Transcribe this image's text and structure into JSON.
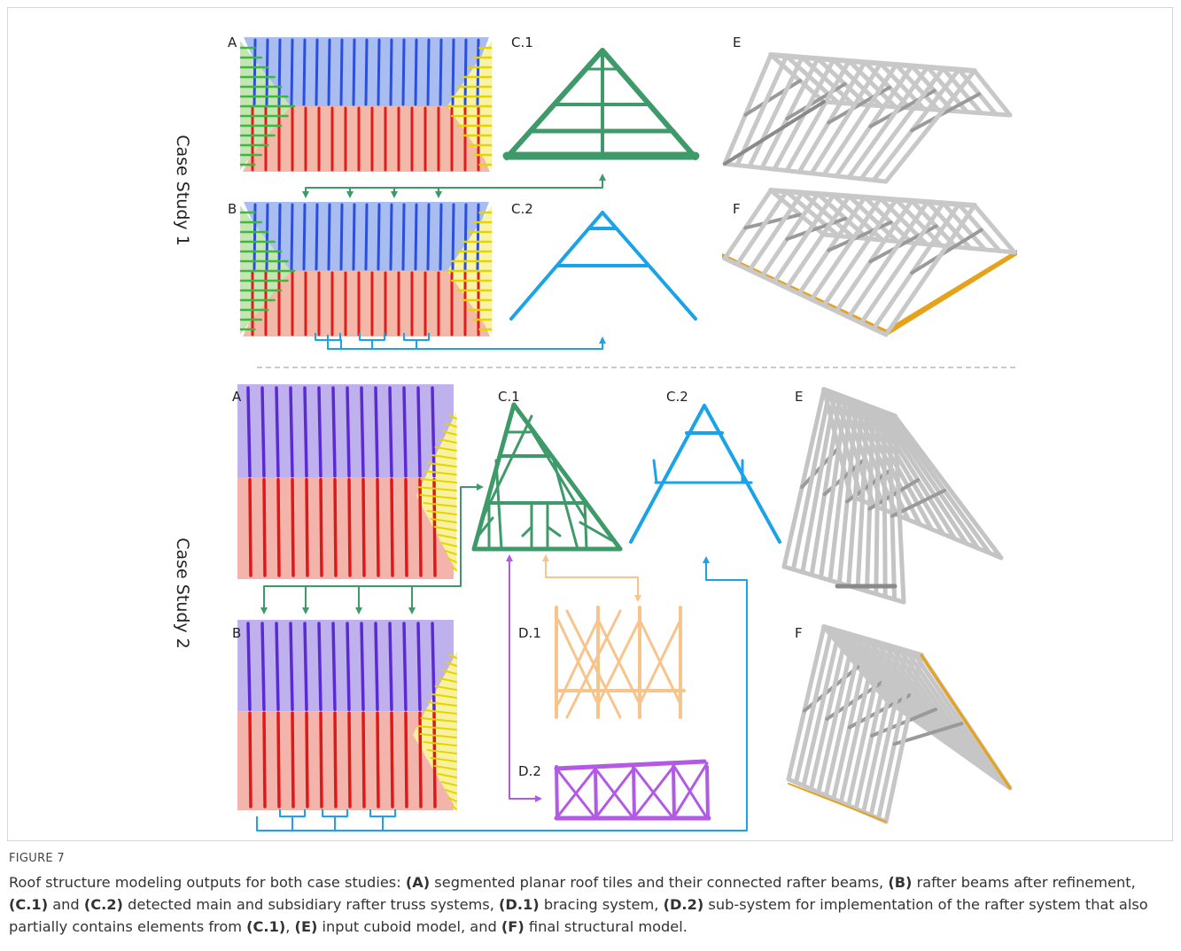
{
  "figure": {
    "case_studies": [
      {
        "title": "Case Study 1",
        "panels": [
          "A",
          "C.1",
          "E",
          "B",
          "C.2",
          "F"
        ]
      },
      {
        "title": "Case Study 2",
        "panels": [
          "A",
          "C.1",
          "C.2",
          "E",
          "B",
          "D.1",
          "D.2",
          "F"
        ]
      }
    ]
  },
  "caption": {
    "label": "FIGURE 7",
    "runs": [
      {
        "text": "Roof structure modeling outputs for both case studies: ",
        "bold": false
      },
      {
        "text": "(A)",
        "bold": true
      },
      {
        "text": " segmented planar roof tiles and their connected rafter beams, ",
        "bold": false
      },
      {
        "text": "(B)",
        "bold": true
      },
      {
        "text": " rafter beams after refinement, ",
        "bold": false
      },
      {
        "text": "(C.1)",
        "bold": true
      },
      {
        "text": " and ",
        "bold": false
      },
      {
        "text": "(C.2)",
        "bold": true
      },
      {
        "text": " detected main and subsidiary rafter truss systems, ",
        "bold": false
      },
      {
        "text": "(D.1)",
        "bold": true
      },
      {
        "text": " bracing system, ",
        "bold": false
      },
      {
        "text": "(D.2)",
        "bold": true
      },
      {
        "text": " sub-system for implementation of the rafter system that also partially contains elements from ",
        "bold": false
      },
      {
        "text": "(C.1)",
        "bold": true
      },
      {
        "text": ", ",
        "bold": false
      },
      {
        "text": "(E)",
        "bold": true
      },
      {
        "text": " input cuboid model, and ",
        "bold": false
      },
      {
        "text": "(F)",
        "bold": true
      },
      {
        "text": " final structural model.",
        "bold": false
      }
    ]
  }
}
